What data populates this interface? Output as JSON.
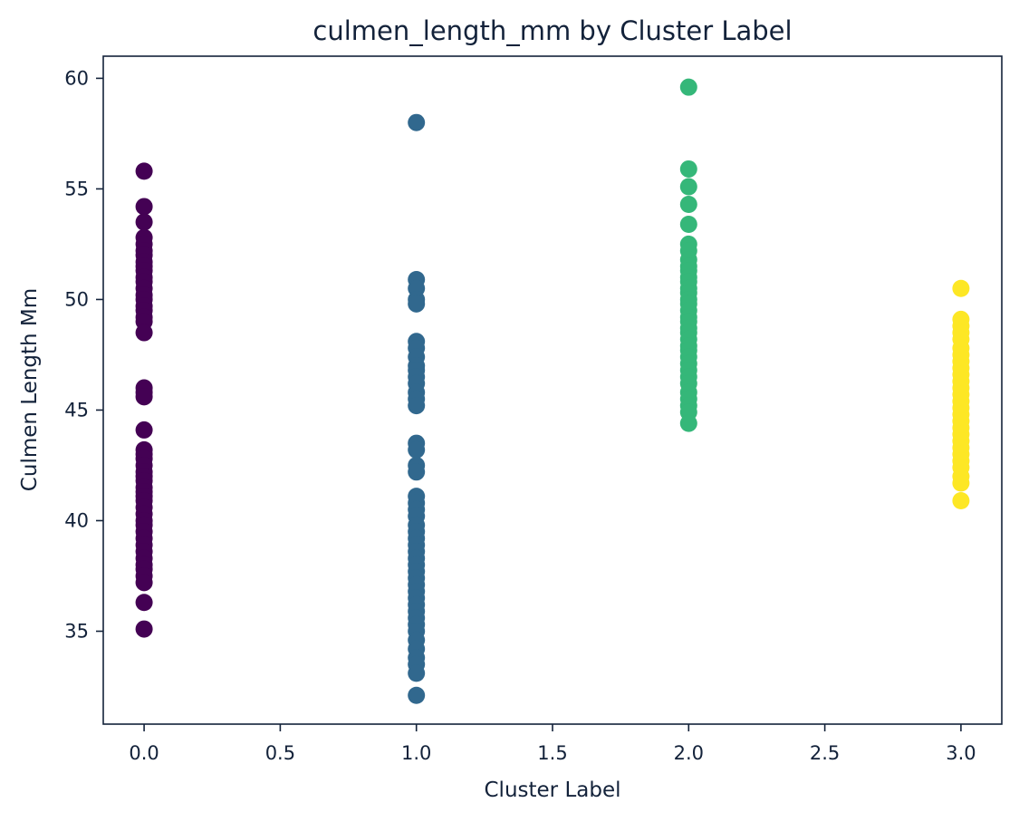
{
  "chart_data": {
    "type": "scatter",
    "title": "culmen_length_mm by Cluster Label",
    "xlabel": "Cluster Label",
    "ylabel": "Culmen Length Mm",
    "xlim": [
      -0.15,
      3.15
    ],
    "ylim": [
      30.8,
      61.0
    ],
    "xticks": [
      0.0,
      0.5,
      1.0,
      1.5,
      2.0,
      2.5,
      3.0
    ],
    "xtick_labels": [
      "0.0",
      "0.5",
      "1.0",
      "1.5",
      "2.0",
      "2.5",
      "3.0"
    ],
    "yticks": [
      35,
      40,
      45,
      50,
      55,
      60
    ],
    "ytick_labels": [
      "35",
      "40",
      "45",
      "50",
      "55",
      "60"
    ],
    "grid": false,
    "colors": {
      "cluster_0": "#440154",
      "cluster_1": "#31688e",
      "cluster_2": "#35b779",
      "cluster_3": "#fde725",
      "axis": "#13223a"
    },
    "series": [
      {
        "name": "Cluster 0",
        "x": 0,
        "color": "#440154",
        "values": [
          55.8,
          54.2,
          53.5,
          52.8,
          52.5,
          52.2,
          52.0,
          51.7,
          51.5,
          51.3,
          51.0,
          50.8,
          50.5,
          50.2,
          50.0,
          49.7,
          49.5,
          49.2,
          49.0,
          48.5,
          46.0,
          45.8,
          45.6,
          44.1,
          43.2,
          43.0,
          42.8,
          42.5,
          42.2,
          42.0,
          41.8,
          41.5,
          41.3,
          41.1,
          40.9,
          40.6,
          40.3,
          40.0,
          39.8,
          39.5,
          39.2,
          38.9,
          38.6,
          38.3,
          38.0,
          37.8,
          37.5,
          37.2,
          36.3,
          35.1
        ]
      },
      {
        "name": "Cluster 1",
        "x": 1,
        "color": "#31688e",
        "values": [
          58.0,
          50.9,
          50.5,
          50.0,
          49.8,
          48.1,
          47.8,
          47.4,
          47.0,
          46.8,
          46.5,
          46.2,
          45.8,
          45.5,
          45.2,
          43.5,
          43.2,
          42.5,
          42.2,
          41.1,
          40.8,
          40.5,
          40.2,
          39.8,
          39.5,
          39.2,
          38.9,
          38.6,
          38.3,
          38.0,
          37.7,
          37.4,
          37.1,
          36.8,
          36.5,
          36.2,
          35.9,
          35.6,
          35.3,
          35.0,
          34.6,
          34.2,
          33.8,
          33.5,
          33.1,
          32.1
        ]
      },
      {
        "name": "Cluster 2",
        "x": 2,
        "color": "#35b779",
        "values": [
          59.6,
          55.9,
          55.1,
          54.3,
          53.4,
          52.5,
          52.2,
          51.8,
          51.5,
          51.3,
          51.0,
          50.8,
          50.5,
          50.3,
          50.0,
          49.8,
          49.5,
          49.2,
          49.0,
          48.7,
          48.5,
          48.2,
          47.9,
          47.7,
          47.4,
          47.1,
          46.8,
          46.5,
          46.2,
          45.8,
          45.5,
          45.2,
          44.9,
          44.4
        ]
      },
      {
        "name": "Cluster 3",
        "x": 3,
        "color": "#fde725",
        "values": [
          50.5,
          49.1,
          48.8,
          48.5,
          48.2,
          47.8,
          47.5,
          47.2,
          46.9,
          46.6,
          46.3,
          46.0,
          45.7,
          45.4,
          45.1,
          44.8,
          44.5,
          44.2,
          43.9,
          43.6,
          43.3,
          43.0,
          42.7,
          42.4,
          42.0,
          41.7,
          40.9
        ]
      }
    ]
  }
}
